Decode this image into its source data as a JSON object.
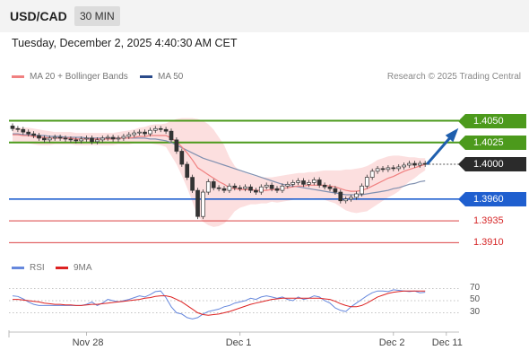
{
  "header": {
    "pair": "USD/CAD",
    "timeframe": "30 MIN"
  },
  "date_line": "Tuesday, December 2, 2025 4:40:30 AM CET",
  "legend": {
    "ma20": "MA 20 + Bollinger Bands",
    "ma50": "MA 50",
    "credit": "Research © 2025 Trading Central"
  },
  "colors": {
    "resistance": "#4c9a1c",
    "pivot": "#2b2b2b",
    "support_main": "#1f5fcf",
    "support_red": "#d62728",
    "ma20": "#f08080",
    "ma50": "#8090b0",
    "band_fill": "#fbd4d4",
    "arrow": "#1f5fae",
    "rsi": "#6688dd",
    "rsi_ma": "#dd2222"
  },
  "levels": [
    {
      "label": "1.4050",
      "value": 1.405,
      "style": "green"
    },
    {
      "label": "1.4025",
      "value": 1.4025,
      "style": "green"
    },
    {
      "label": "1.4000",
      "value": 1.4,
      "style": "dark"
    },
    {
      "label": "1.3960",
      "value": 1.396,
      "style": "blue"
    },
    {
      "label": "1.3935",
      "value": 1.3935,
      "style": "red"
    },
    {
      "label": "1.3910",
      "value": 1.391,
      "style": "red"
    }
  ],
  "rsi_legend": {
    "rsi": "RSI",
    "ma": "9MA"
  },
  "rsi_ticks": [
    {
      "label": "70",
      "value": 70
    },
    {
      "label": "50",
      "value": 50
    },
    {
      "label": "30",
      "value": 30
    }
  ],
  "x_labels": [
    {
      "label": "Nov 28",
      "index": 14
    },
    {
      "label": "Dec 1",
      "index": 43
    },
    {
      "label": "Dec 2",
      "index": 72
    },
    {
      "label": "Dec 11",
      "index": 82
    }
  ],
  "chart_data": {
    "type": "candlestick",
    "price_range": [
      1.39,
      1.4065
    ],
    "rsi_range": [
      10,
      90
    ],
    "candles_close": [
      1.4041,
      1.404,
      1.4037,
      1.4035,
      1.4033,
      1.403,
      1.4028,
      1.403,
      1.4031,
      1.403,
      1.4029,
      1.4028,
      1.4027,
      1.4029,
      1.403,
      1.4026,
      1.4028,
      1.403,
      1.4031,
      1.4029,
      1.403,
      1.4032,
      1.4034,
      1.4036,
      1.4037,
      1.4035,
      1.4039,
      1.4041,
      1.404,
      1.4038,
      1.4028,
      1.4015,
      1.4,
      1.3985,
      1.397,
      1.394,
      1.3968,
      1.398,
      1.3973,
      1.3972,
      1.397,
      1.3975,
      1.3973,
      1.3972,
      1.3974,
      1.397,
      1.3968,
      1.3974,
      1.3976,
      1.3972,
      1.397,
      1.3975,
      1.3977,
      1.3979,
      1.3981,
      1.3977,
      1.3979,
      1.3982,
      1.3976,
      1.3974,
      1.3972,
      1.3968,
      1.3958,
      1.396,
      1.3962,
      1.3966,
      1.3975,
      1.3985,
      1.3992,
      1.3995,
      1.3994,
      1.3996,
      1.3995,
      1.3997,
      1.3999,
      1.4001,
      1.3999,
      1.4001,
      1.4
    ],
    "ma20": [
      1.4034,
      1.4034,
      1.4033,
      1.4033,
      1.4032,
      1.4031,
      1.4031,
      1.403,
      1.403,
      1.403,
      1.403,
      1.403,
      1.4029,
      1.4029,
      1.4029,
      1.4029,
      1.4029,
      1.4029,
      1.4029,
      1.4029,
      1.403,
      1.403,
      1.403,
      1.4031,
      1.4032,
      1.4032,
      1.4033,
      1.4033,
      1.4033,
      1.4033,
      1.403,
      1.4026,
      1.402,
      1.4013,
      1.4005,
      1.3996,
      1.3992,
      1.3988,
      1.3984,
      1.398,
      1.3977,
      1.3973,
      1.3972,
      1.3971,
      1.3971,
      1.3971,
      1.397,
      1.397,
      1.397,
      1.3971,
      1.3971,
      1.3972,
      1.3973,
      1.3974,
      1.3975,
      1.3975,
      1.3976,
      1.3976,
      1.3976,
      1.3976,
      1.3975,
      1.3974,
      1.3972,
      1.397,
      1.3969,
      1.3969,
      1.397,
      1.3972,
      1.3975,
      1.3978,
      1.3981,
      1.3984,
      1.3986,
      1.3989,
      1.3992,
      1.3994,
      1.3996,
      1.3998,
      1.4
    ],
    "band_upper": [
      1.4042,
      1.4042,
      1.4042,
      1.4042,
      1.4041,
      1.404,
      1.4039,
      1.4038,
      1.4037,
      1.4037,
      1.4037,
      1.4037,
      1.4036,
      1.4036,
      1.4036,
      1.4036,
      1.4036,
      1.4036,
      1.4036,
      1.4036,
      1.4037,
      1.4038,
      1.4039,
      1.404,
      1.4042,
      1.4043,
      1.4045,
      1.4046,
      1.4046,
      1.4047,
      1.405,
      1.4052,
      1.4053,
      1.4053,
      1.4053,
      1.4052,
      1.405,
      1.4046,
      1.404,
      1.4031,
      1.4022,
      1.4008,
      1.3998,
      1.3992,
      1.399,
      1.3988,
      1.3986,
      1.3985,
      1.3985,
      1.3985,
      1.3986,
      1.3987,
      1.3988,
      1.3989,
      1.399,
      1.399,
      1.3991,
      1.3991,
      1.3992,
      1.3993,
      1.3993,
      1.3993,
      1.3993,
      1.3994,
      1.3994,
      1.3995,
      1.3996,
      1.3998,
      1.4001,
      1.4005,
      1.4007,
      1.4009,
      1.401,
      1.401,
      1.4009,
      1.4008,
      1.4008,
      1.4007,
      1.4007
    ],
    "band_lower": [
      1.4026,
      1.4026,
      1.4025,
      1.4024,
      1.4023,
      1.4022,
      1.4022,
      1.4022,
      1.4023,
      1.4023,
      1.4023,
      1.4023,
      1.4022,
      1.4022,
      1.4022,
      1.4022,
      1.4022,
      1.4022,
      1.4022,
      1.4022,
      1.4023,
      1.4023,
      1.4023,
      1.4024,
      1.4024,
      1.4024,
      1.4024,
      1.4023,
      1.4022,
      1.402,
      1.401,
      1.4,
      1.3987,
      1.3973,
      1.3957,
      1.394,
      1.3934,
      1.393,
      1.3928,
      1.3929,
      1.3932,
      1.3938,
      1.3946,
      1.395,
      1.3952,
      1.3954,
      1.3954,
      1.3955,
      1.3955,
      1.3957,
      1.3956,
      1.3957,
      1.3958,
      1.3959,
      1.396,
      1.396,
      1.3961,
      1.3961,
      1.396,
      1.3959,
      1.3957,
      1.3955,
      1.3951,
      1.3947,
      1.3945,
      1.3944,
      1.3945,
      1.3946,
      1.395,
      1.3954,
      1.3958,
      1.3962,
      1.3965,
      1.3969,
      1.3975,
      1.398,
      1.3984,
      1.3989,
      1.3993
    ],
    "ma50": [
      1.4035,
      1.4035,
      1.4034,
      1.4034,
      1.4034,
      1.4033,
      1.4033,
      1.4032,
      1.4032,
      1.4032,
      1.4031,
      1.4031,
      1.4031,
      1.4031,
      1.403,
      1.403,
      1.403,
      1.403,
      1.403,
      1.403,
      1.403,
      1.403,
      1.403,
      1.403,
      1.403,
      1.403,
      1.4029,
      1.4029,
      1.4028,
      1.4027,
      1.4025,
      1.4022,
      1.4019,
      1.4016,
      1.4013,
      1.401,
      1.4007,
      1.4005,
      1.4003,
      1.4001,
      1.3999,
      1.3997,
      1.3995,
      1.3993,
      1.3991,
      1.3989,
      1.3987,
      1.3985,
      1.3983,
      1.3981,
      1.3979,
      1.3977,
      1.3976,
      1.3975,
      1.3974,
      1.3973,
      1.3972,
      1.3971,
      1.397,
      1.3969,
      1.3968,
      1.3967,
      1.3966,
      1.3965,
      1.3965,
      1.3965,
      1.3965,
      1.3966,
      1.3967,
      1.3968,
      1.3969,
      1.397,
      1.3972,
      1.3973,
      1.3975,
      1.3977,
      1.3978,
      1.398,
      1.3981
    ],
    "rsi": [
      58,
      57,
      53,
      48,
      44,
      42,
      42,
      42,
      42,
      42,
      42,
      42,
      42,
      42,
      44,
      48,
      42,
      46,
      52,
      50,
      48,
      50,
      52,
      55,
      58,
      56,
      60,
      65,
      66,
      55,
      40,
      30,
      28,
      22,
      20,
      22,
      28,
      32,
      34,
      36,
      40,
      42,
      46,
      48,
      50,
      54,
      52,
      56,
      58,
      56,
      54,
      56,
      52,
      50,
      56,
      52,
      54,
      58,
      56,
      50,
      46,
      38,
      34,
      32,
      40,
      46,
      52,
      58,
      63,
      66,
      66,
      65,
      68,
      67,
      66,
      65,
      66,
      63,
      64
    ],
    "rsi_ma": [
      52,
      52,
      51,
      50,
      49,
      48,
      46,
      45,
      44,
      44,
      43,
      43,
      42,
      42,
      43,
      44,
      44,
      45,
      46,
      47,
      48,
      49,
      50,
      51,
      52,
      54,
      55,
      57,
      58,
      58,
      56,
      52,
      48,
      42,
      36,
      30,
      27,
      26,
      27,
      28,
      30,
      32,
      35,
      38,
      41,
      44,
      46,
      48,
      50,
      52,
      53,
      54,
      54,
      54,
      54,
      54,
      54,
      54,
      54,
      53,
      52,
      49,
      45,
      42,
      40,
      40,
      42,
      46,
      51,
      56,
      59,
      62,
      64,
      65,
      66,
      66,
      66,
      66,
      66
    ],
    "projection": {
      "from_index": 78,
      "from_value": 1.4,
      "to_value": 1.405
    }
  }
}
